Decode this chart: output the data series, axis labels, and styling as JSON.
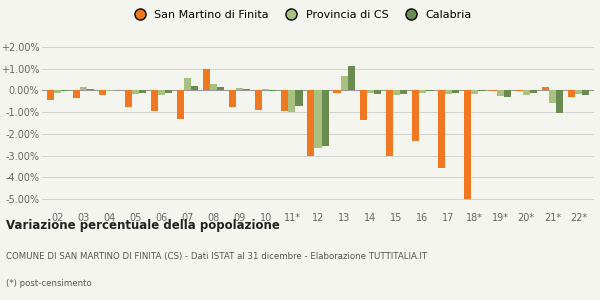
{
  "categories": [
    "02",
    "03",
    "04",
    "05",
    "06",
    "07",
    "08",
    "09",
    "10",
    "11*",
    "12",
    "13",
    "14",
    "15",
    "16",
    "17",
    "18*",
    "19*",
    "20*",
    "21*",
    "22*"
  ],
  "san_martino": [
    -0.45,
    -0.35,
    -0.2,
    -0.75,
    -0.95,
    -1.3,
    1.0,
    -0.75,
    -0.9,
    -0.95,
    -3.0,
    -0.1,
    -1.35,
    -3.0,
    -2.35,
    -3.55,
    -5.0,
    -0.05,
    -0.05,
    0.15,
    -0.3
  ],
  "provincia_cs": [
    -0.1,
    0.15,
    -0.05,
    -0.15,
    -0.2,
    0.55,
    0.3,
    0.1,
    0.05,
    -1.0,
    -2.65,
    0.65,
    -0.1,
    -0.2,
    -0.1,
    -0.15,
    -0.15,
    -0.25,
    -0.2,
    -0.6,
    -0.15
  ],
  "calabria": [
    -0.05,
    0.05,
    0.0,
    -0.1,
    -0.1,
    0.2,
    0.15,
    0.05,
    -0.05,
    -0.7,
    -2.55,
    1.1,
    -0.15,
    -0.15,
    -0.05,
    -0.1,
    -0.05,
    -0.3,
    -0.1,
    -1.05,
    -0.2
  ],
  "san_martino_color": "#f07820",
  "provincia_cs_color": "#a8c080",
  "calabria_color": "#6b8c50",
  "background_color": "#f5f5f0",
  "grid_color": "#cccccc",
  "title": "Variazione percentuale della popolazione",
  "subtitle": "COMUNE DI SAN MARTINO DI FINITA (CS) - Dati ISTAT al 31 dicembre - Elaborazione TUTTITALIA.IT",
  "footnote": "(*) post-censimento",
  "ylim": [
    -5.5,
    2.5
  ],
  "yticks": [
    -5.0,
    -4.0,
    -3.0,
    -2.0,
    -1.0,
    0.0,
    1.0,
    2.0
  ],
  "ytick_labels": [
    "-5.00%",
    "-4.00%",
    "-3.00%",
    "-2.00%",
    "-1.00%",
    "0.00%",
    "+1.00%",
    "+2.00%"
  ],
  "legend_labels": [
    "San Martino di Finita",
    "Provincia di CS",
    "Calabria"
  ]
}
